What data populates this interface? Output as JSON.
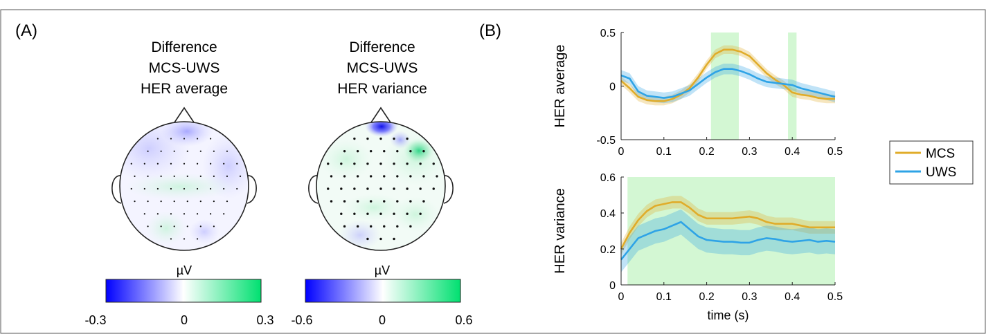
{
  "panel_a": {
    "label": "(A)",
    "maps": [
      {
        "title": [
          "Difference",
          "MCS-UWS",
          "HER average"
        ],
        "colorbar": {
          "unit": "µV",
          "ticks": [
            "-0.3",
            "0",
            "0.3"
          ],
          "range": [
            -0.3,
            0.3
          ]
        }
      },
      {
        "title": [
          "Difference",
          "MCS-UWS",
          "HER variance"
        ],
        "colorbar": {
          "unit": "µV",
          "ticks": [
            "-0.6",
            "0",
            "0.6"
          ],
          "range": [
            -0.6,
            0.6
          ]
        }
      }
    ],
    "colors": {
      "negative": "#0000ff",
      "zero": "#ffffff",
      "positive": "#00e070"
    }
  },
  "panel_b": {
    "label": "(B)",
    "legend": [
      {
        "name": "MCS",
        "color": "#e0ac2a"
      },
      {
        "name": "UWS",
        "color": "#2ea3e6"
      }
    ],
    "highlight_color": "#c8f5c8"
  },
  "chart_data": [
    {
      "type": "line",
      "ylabel": "HER average",
      "xlabel": "",
      "xlim": [
        0,
        0.5
      ],
      "ylim": [
        -0.5,
        0.5
      ],
      "xticks": [
        "0",
        "0.1",
        "0.2",
        "0.3",
        "0.4",
        "0.5"
      ],
      "yticks": [
        "-0.5",
        "0",
        "0.5"
      ],
      "significant_windows": [
        [
          0.21,
          0.275
        ],
        [
          0.39,
          0.41
        ]
      ],
      "x": [
        0,
        0.02,
        0.04,
        0.06,
        0.08,
        0.1,
        0.12,
        0.14,
        0.16,
        0.18,
        0.2,
        0.22,
        0.24,
        0.26,
        0.28,
        0.3,
        0.32,
        0.34,
        0.36,
        0.38,
        0.4,
        0.42,
        0.44,
        0.46,
        0.48,
        0.5
      ],
      "series": [
        {
          "name": "MCS",
          "values": [
            0.05,
            -0.02,
            -0.1,
            -0.13,
            -0.14,
            -0.14,
            -0.12,
            -0.08,
            -0.02,
            0.08,
            0.2,
            0.3,
            0.34,
            0.34,
            0.32,
            0.28,
            0.2,
            0.12,
            0.06,
            0.01,
            -0.06,
            -0.08,
            -0.09,
            -0.11,
            -0.12,
            -0.12
          ],
          "error": 0.04
        },
        {
          "name": "UWS",
          "values": [
            0.1,
            0.07,
            -0.05,
            -0.09,
            -0.1,
            -0.11,
            -0.1,
            -0.07,
            -0.04,
            0.02,
            0.08,
            0.13,
            0.16,
            0.16,
            0.14,
            0.11,
            0.07,
            0.04,
            0.03,
            0.02,
            0.01,
            -0.02,
            -0.04,
            -0.06,
            -0.08,
            -0.1
          ],
          "error": 0.05
        }
      ]
    },
    {
      "type": "line",
      "ylabel": "HER variance",
      "xlabel": "time (s)",
      "xlim": [
        0,
        0.5
      ],
      "ylim": [
        0,
        0.6
      ],
      "xticks": [
        "0",
        "0.1",
        "0.2",
        "0.3",
        "0.4",
        "0.5"
      ],
      "yticks": [
        "0",
        "0.2",
        "0.4",
        "0.6"
      ],
      "significant_windows": [
        [
          0.015,
          0.5
        ]
      ],
      "x": [
        0,
        0.02,
        0.04,
        0.06,
        0.08,
        0.1,
        0.12,
        0.14,
        0.16,
        0.18,
        0.2,
        0.22,
        0.24,
        0.26,
        0.28,
        0.3,
        0.32,
        0.34,
        0.36,
        0.38,
        0.4,
        0.42,
        0.44,
        0.46,
        0.48,
        0.5
      ],
      "series": [
        {
          "name": "MCS",
          "values": [
            0.2,
            0.29,
            0.36,
            0.41,
            0.44,
            0.45,
            0.46,
            0.46,
            0.43,
            0.39,
            0.37,
            0.37,
            0.37,
            0.37,
            0.375,
            0.38,
            0.37,
            0.35,
            0.34,
            0.34,
            0.34,
            0.33,
            0.32,
            0.32,
            0.32,
            0.32
          ],
          "error": 0.035
        },
        {
          "name": "UWS",
          "values": [
            0.14,
            0.2,
            0.26,
            0.28,
            0.3,
            0.31,
            0.33,
            0.35,
            0.31,
            0.27,
            0.25,
            0.245,
            0.24,
            0.24,
            0.235,
            0.235,
            0.25,
            0.26,
            0.255,
            0.245,
            0.24,
            0.245,
            0.25,
            0.24,
            0.245,
            0.24
          ],
          "error": 0.07
        }
      ]
    }
  ]
}
